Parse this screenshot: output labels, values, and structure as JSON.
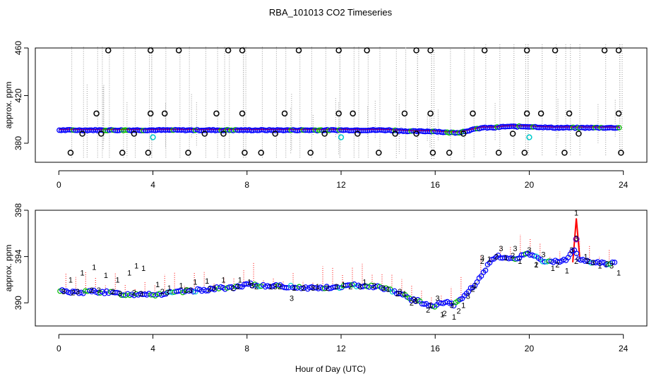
{
  "title": "RBA_101013  CO2 Timeseries",
  "xlabel": "Hour of Day (UTC)",
  "colors": {
    "outlier": "#000000",
    "flagged": "#00cccc",
    "mean_line": "#ff0000",
    "series_1": "#ff0000",
    "series_2": "#00bb00",
    "series_3": "#0000cc",
    "points": "#0000ff",
    "raw": "#9a9a9a"
  },
  "chart_data": [
    {
      "type": "scatter",
      "panel": "top",
      "ylabel": "approx. ppm",
      "xlim": [
        -1,
        25
      ],
      "ylim": [
        364,
        460
      ],
      "x_ticks": [
        0,
        4,
        8,
        12,
        16,
        20,
        24
      ],
      "y_ticks": [
        380,
        420,
        460
      ],
      "grid": false,
      "baseline_profile": {
        "x": [
          0,
          1,
          2,
          3,
          3.5,
          4,
          5,
          6,
          7,
          8,
          9,
          10,
          11,
          12,
          13,
          14,
          15,
          15.7,
          16,
          16.5,
          17,
          17.5,
          18,
          18.5,
          19,
          19.5,
          20,
          21,
          22,
          23,
          24
        ],
        "y": [
          391,
          391,
          391,
          391,
          391,
          391,
          391,
          391,
          391,
          391,
          391,
          391,
          391,
          391,
          391,
          391,
          390,
          390,
          390,
          389,
          389,
          391,
          393,
          393,
          394,
          394,
          394,
          393,
          393,
          393,
          393
        ]
      },
      "outliers_high": {
        "x": [
          2.1,
          3.9,
          5.1,
          7.2,
          7.8,
          10.2,
          11.9,
          13.1,
          15.2,
          15.8,
          18.1,
          19.9,
          21.1,
          23.2,
          23.8
        ],
        "y": [
          458,
          458,
          458,
          458,
          458,
          458,
          458,
          458,
          458,
          458,
          458,
          458,
          458,
          458,
          458
        ]
      },
      "outliers_mid": {
        "x": [
          1.6,
          3.9,
          4.5,
          6.7,
          7.8,
          9.6,
          11.9,
          12.5,
          14.7,
          15.8,
          17.6,
          19.9,
          20.5,
          21.7,
          23.8
        ],
        "y": [
          405,
          405,
          405,
          405,
          405,
          405,
          405,
          405,
          405,
          405,
          405,
          405,
          405,
          405,
          405
        ]
      },
      "outliers_low": {
        "x": [
          0.5,
          1.0,
          1.8,
          2.7,
          3.2,
          3.8,
          5.5,
          6.2,
          7.0,
          7.9,
          8.6,
          9.2,
          10.7,
          11.3,
          12.7,
          13.6,
          14.3,
          15.2,
          15.9,
          16.6,
          17.2,
          18.7,
          19.3,
          19.8,
          21.5,
          22.1,
          23.9
        ],
        "y": [
          372,
          388,
          388,
          372,
          388,
          372,
          372,
          388,
          388,
          372,
          372,
          388,
          372,
          388,
          388,
          372,
          388,
          388,
          372,
          372,
          388,
          372,
          388,
          372,
          372,
          388,
          372
        ]
      },
      "flagged_points": {
        "x": [
          4.0,
          12.0,
          20.0
        ],
        "y": [
          385,
          385,
          385
        ]
      }
    },
    {
      "type": "scatter",
      "panel": "bottom",
      "ylabel": "approx. ppm",
      "xlim": [
        -1,
        25
      ],
      "ylim": [
        388,
        398
      ],
      "x_ticks": [
        0,
        4,
        8,
        12,
        16,
        20,
        24
      ],
      "y_ticks": [
        390,
        394,
        398
      ],
      "grid": false,
      "series": [
        {
          "label": "1",
          "x": [
            0.5,
            1.0,
            1.5,
            2.0,
            2.5,
            3.0,
            3.3,
            3.6,
            4.2,
            4.7,
            5.2,
            5.8,
            6.3,
            7.0,
            7.7,
            8.1,
            9.0,
            10.0,
            11.0,
            12.1,
            13.0,
            14.0,
            14.7,
            15.2,
            15.8,
            16.3,
            16.8,
            17.2,
            17.7,
            18.3,
            19.0,
            19.6,
            20.3,
            21.0,
            21.6,
            22.0,
            22.4,
            23.0,
            23.8
          ],
          "y": [
            392.0,
            392.6,
            393.1,
            392.4,
            392.0,
            392.6,
            393.2,
            393.0,
            391.6,
            391.3,
            391.5,
            391.8,
            391.9,
            392.0,
            392.0,
            391.8,
            391.4,
            391.3,
            391.4,
            391.6,
            391.8,
            391.2,
            390.8,
            390.2,
            389.8,
            389.0,
            388.8,
            389.8,
            391.5,
            393.8,
            393.9,
            393.6,
            393.3,
            393.0,
            392.8,
            397.8,
            394.0,
            393.2,
            392.6
          ]
        },
        {
          "label": "2",
          "x": [
            0.6,
            1.4,
            2.3,
            3.2,
            4.4,
            5.4,
            6.4,
            7.4,
            8.4,
            9.4,
            10.4,
            11.4,
            12.4,
            13.4,
            14.4,
            15.0,
            15.7,
            16.4,
            17.0,
            17.6,
            18.0,
            18.6,
            19.3,
            20.3,
            21.2,
            22.0,
            22.5,
            23.3
          ],
          "y": [
            390.9,
            391.1,
            391.0,
            390.9,
            391.0,
            391.1,
            391.2,
            391.3,
            391.4,
            391.4,
            391.3,
            391.3,
            391.4,
            391.5,
            390.8,
            390.0,
            389.4,
            389.1,
            389.3,
            391.2,
            393.6,
            394.0,
            394.1,
            393.3,
            393.3,
            393.6,
            393.6,
            393.4
          ]
        },
        {
          "label": "3",
          "x": [
            0.2,
            0.8,
            1.7,
            2.6,
            3.5,
            4.6,
            5.6,
            6.6,
            7.6,
            8.2,
            9.2,
            9.9,
            10.8,
            11.8,
            12.8,
            13.8,
            14.5,
            15.1,
            16.1,
            16.7,
            17.4,
            18.0,
            18.8,
            19.4,
            20.0,
            20.6,
            21.8,
            22.0,
            22.7,
            23.5
          ],
          "y": [
            391.0,
            391.0,
            391.1,
            390.8,
            390.8,
            390.9,
            391.1,
            391.3,
            391.4,
            391.5,
            391.4,
            390.4,
            391.3,
            391.4,
            391.4,
            391.3,
            391.0,
            390.3,
            390.4,
            389.8,
            390.6,
            393.9,
            394.7,
            394.7,
            394.6,
            394.2,
            394.6,
            395.6,
            393.5,
            393.2
          ]
        }
      ],
      "point_profile": {
        "x": [
          0,
          0.5,
          1,
          1.5,
          2,
          2.5,
          3,
          3.5,
          3.7,
          4.1,
          4.5,
          5,
          5.5,
          6,
          6.5,
          7,
          7.5,
          7.8,
          8.0,
          8.5,
          9,
          9.5,
          10,
          10.5,
          11,
          11.5,
          11.8,
          12.0,
          12.5,
          13,
          13.5,
          14,
          14.5,
          15,
          15.5,
          15.9,
          16.2,
          16.5,
          16.8,
          17.2,
          17.5,
          17.8,
          18.0,
          18.3,
          18.6,
          19.0,
          19.3,
          19.6,
          20.0,
          20.4,
          20.8,
          21.2,
          21.6,
          21.9,
          22.1,
          22.4,
          22.8,
          23.2,
          23.6,
          23.7
        ],
        "y": [
          391.1,
          390.9,
          390.9,
          391.0,
          390.9,
          390.8,
          390.7,
          390.8,
          390.8,
          390.7,
          390.8,
          390.9,
          391.0,
          391.1,
          391.2,
          391.3,
          391.3,
          391.4,
          391.6,
          391.5,
          391.5,
          391.4,
          391.4,
          391.3,
          391.3,
          391.3,
          391.3,
          391.4,
          391.5,
          391.5,
          391.4,
          391.2,
          390.8,
          390.3,
          390.0,
          389.6,
          390.0,
          390.0,
          389.8,
          390.5,
          391.2,
          391.8,
          392.5,
          393.4,
          394.0,
          393.9,
          393.8,
          394.0,
          394.2,
          393.8,
          393.5,
          393.6,
          393.8,
          394.6,
          393.8,
          393.6,
          393.5,
          393.4,
          393.4,
          393.5
        ]
      },
      "highlighted_peak": {
        "x": 22.0,
        "y": 395.5
      }
    }
  ]
}
